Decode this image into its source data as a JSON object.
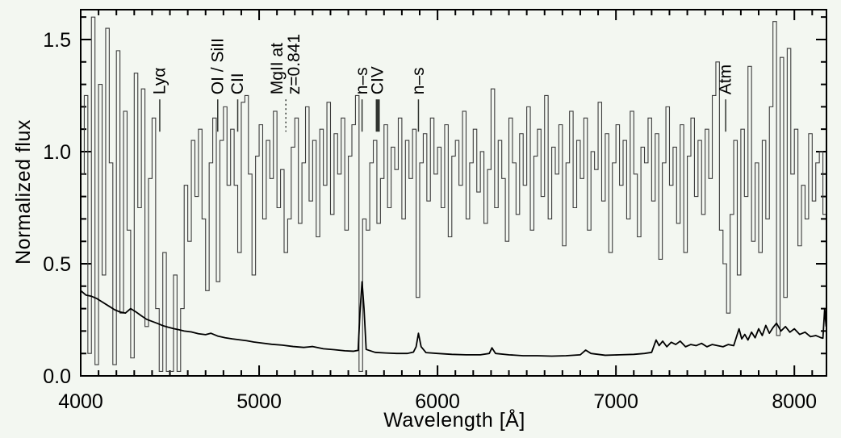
{
  "figure": {
    "background_color": "#f3f7f1",
    "frame_color": "#000000",
    "spectrum_color": "#3c3c3c",
    "error_color": "#000000"
  },
  "chart_data": {
    "type": "line",
    "title": "",
    "xlabel": "Wavelength [Å]",
    "ylabel": "Normalized flux",
    "xlim": [
      4000,
      8180
    ],
    "ylim": [
      0,
      1.633
    ],
    "grid": false,
    "legend": false,
    "x_major_ticks": [
      4000,
      5000,
      6000,
      7000,
      8000
    ],
    "x_major_tick_labels": [
      "4000",
      "5000",
      "6000",
      "7000",
      "8000"
    ],
    "x_minor_step": 100,
    "y_major_ticks": [
      0.0,
      0.5,
      1.0,
      1.5
    ],
    "y_major_tick_labels": [
      "0.0",
      "0.5",
      "1.0",
      "1.5"
    ],
    "y_minor_step": 0.1,
    "annotation_marker_flux": [
      1.089,
      1.233
    ],
    "annotations": [
      {
        "label_lines": [
          "Lyα"
        ],
        "wavelength": 4443,
        "line_style": "solid",
        "line_weight": "thin"
      },
      {
        "label_lines": [
          "OI / SiII"
        ],
        "wavelength": 4768,
        "line_style": "solid",
        "line_weight": "thin"
      },
      {
        "label_lines": [
          "CII"
        ],
        "wavelength": 4880,
        "line_style": "solid",
        "line_weight": "thin"
      },
      {
        "label_lines": [
          "MgII at",
          "z=0.841"
        ],
        "wavelength": 5150,
        "line_style": "dotted",
        "line_weight": "thin"
      },
      {
        "label_lines": [
          "n–s"
        ],
        "wavelength": 5577,
        "line_style": "solid",
        "line_weight": "thin"
      },
      {
        "label_lines": [
          "CIV"
        ],
        "wavelength": 5665,
        "line_style": "solid",
        "line_weight": "thick"
      },
      {
        "label_lines": [
          "n–s"
        ],
        "wavelength": 5893,
        "line_style": "solid",
        "line_weight": "thin"
      },
      {
        "label_lines": [
          "Atm"
        ],
        "wavelength": 7615,
        "line_style": "solid",
        "line_weight": "thin"
      }
    ],
    "series": [
      {
        "name": "object-spectrum",
        "style": "histogram",
        "color": "#3c3c3c",
        "bin_start": 4000,
        "bin_width": 20,
        "values": [
          0.9,
          1.25,
          0.1,
          1.6,
          0.05,
          1.3,
          0.45,
          1.55,
          0.95,
          0.05,
          1.45,
          0.28,
          1.18,
          0.65,
          0.08,
          1.35,
          0.75,
          1.28,
          0.22,
          0.88,
          1.15,
          0.3,
          0.02,
          0.55,
          0.02,
          0.02,
          0.45,
          0.02,
          0.3,
          0.85,
          0.6,
          1.05,
          0.8,
          1.1,
          0.7,
          0.38,
          0.95,
          1.15,
          0.42,
          1.05,
          1.2,
          0.85,
          1.1,
          0.85,
          0.55,
          1.22,
          1.25,
          0.9,
          0.45,
          0.98,
          1.12,
          0.7,
          1.05,
          0.88,
          1.18,
          0.75,
          0.92,
          0.55,
          0.7,
          1.02,
          1.15,
          0.68,
          0.95,
          1.2,
          0.78,
          1.05,
          0.62,
          1.1,
          0.85,
          1.22,
          0.72,
          1.08,
          0.9,
          1.15,
          0.65,
          0.98,
          1.12,
          1.25,
          0.02,
          0.7,
          0.65,
          0.95,
          1.05,
          0.68,
          0.88,
          1.12,
          0.75,
          1.02,
          0.92,
          1.15,
          0.7,
          1.05,
          0.88,
          1.1,
          0.35,
          0.95,
          1.08,
          0.78,
          1.15,
          0.9,
          1.02,
          0.75,
          1.12,
          0.62,
          0.98,
          1.05,
          0.85,
          1.18,
          0.7,
          0.95,
          1.1,
          0.82,
          1.0,
          0.68,
          0.92,
          1.28,
          0.75,
          1.05,
          0.88,
          0.6,
          1.15,
          0.95,
          0.72,
          1.08,
          0.85,
          1.2,
          0.65,
          0.98,
          1.1,
          0.8,
          1.25,
          0.7,
          1.02,
          0.9,
          1.12,
          0.58,
          0.95,
          1.18,
          0.75,
          1.05,
          0.88,
          1.15,
          0.65,
          1.0,
          0.92,
          1.22,
          0.78,
          1.08,
          0.55,
          0.95,
          1.12,
          0.85,
          1.05,
          0.7,
          1.18,
          0.9,
          0.62,
          1.02,
          0.95,
          1.15,
          0.78,
          1.08,
          0.52,
          0.95,
          1.2,
          0.85,
          1.02,
          0.68,
          1.12,
          0.55,
          0.98,
          1.15,
          0.8,
          1.05,
          0.72,
          1.1,
          0.88,
          1.25,
          1.4,
          0.65,
          0.5,
          0.28,
          0.72,
          1.05,
          0.45,
          1.1,
          0.8,
          1.38,
          0.6,
          0.95,
          0.55,
          1.05,
          0.7,
          1.2,
          1.58,
          0.18,
          1.42,
          0.35,
          1.46,
          0.9,
          1.1,
          0.58,
          0.85,
          0.7,
          1.08,
          0.78,
          0.95,
          1.0,
          0.72,
          1.33
        ]
      },
      {
        "name": "error-spectrum",
        "style": "line",
        "color": "#000000",
        "points": [
          [
            4000,
            0.38
          ],
          [
            4030,
            0.36
          ],
          [
            4060,
            0.355
          ],
          [
            4090,
            0.345
          ],
          [
            4120,
            0.33
          ],
          [
            4160,
            0.31
          ],
          [
            4190,
            0.295
          ],
          [
            4220,
            0.285
          ],
          [
            4250,
            0.28
          ],
          [
            4280,
            0.3
          ],
          [
            4310,
            0.285
          ],
          [
            4340,
            0.268
          ],
          [
            4370,
            0.252
          ],
          [
            4400,
            0.243
          ],
          [
            4430,
            0.234
          ],
          [
            4460,
            0.224
          ],
          [
            4490,
            0.217
          ],
          [
            4520,
            0.211
          ],
          [
            4550,
            0.206
          ],
          [
            4580,
            0.2
          ],
          [
            4620,
            0.196
          ],
          [
            4660,
            0.188
          ],
          [
            4700,
            0.184
          ],
          [
            4730,
            0.19
          ],
          [
            4770,
            0.177
          ],
          [
            4810,
            0.17
          ],
          [
            4850,
            0.165
          ],
          [
            4890,
            0.161
          ],
          [
            4930,
            0.157
          ],
          [
            4970,
            0.151
          ],
          [
            5010,
            0.147
          ],
          [
            5070,
            0.141
          ],
          [
            5130,
            0.137
          ],
          [
            5190,
            0.131
          ],
          [
            5250,
            0.127
          ],
          [
            5300,
            0.131
          ],
          [
            5360,
            0.121
          ],
          [
            5420,
            0.117
          ],
          [
            5480,
            0.112
          ],
          [
            5530,
            0.11
          ],
          [
            5555,
            0.114
          ],
          [
            5565,
            0.28
          ],
          [
            5577,
            0.42
          ],
          [
            5588,
            0.3
          ],
          [
            5600,
            0.118
          ],
          [
            5650,
            0.105
          ],
          [
            5710,
            0.102
          ],
          [
            5770,
            0.1
          ],
          [
            5830,
            0.1
          ],
          [
            5865,
            0.106
          ],
          [
            5880,
            0.13
          ],
          [
            5893,
            0.19
          ],
          [
            5908,
            0.13
          ],
          [
            5935,
            0.104
          ],
          [
            6000,
            0.1
          ],
          [
            6080,
            0.096
          ],
          [
            6160,
            0.094
          ],
          [
            6240,
            0.094
          ],
          [
            6290,
            0.1
          ],
          [
            6305,
            0.125
          ],
          [
            6325,
            0.1
          ],
          [
            6400,
            0.094
          ],
          [
            6480,
            0.09
          ],
          [
            6560,
            0.09
          ],
          [
            6640,
            0.088
          ],
          [
            6720,
            0.09
          ],
          [
            6800,
            0.094
          ],
          [
            6830,
            0.115
          ],
          [
            6860,
            0.1
          ],
          [
            6940,
            0.092
          ],
          [
            7020,
            0.094
          ],
          [
            7100,
            0.096
          ],
          [
            7160,
            0.1
          ],
          [
            7200,
            0.105
          ],
          [
            7225,
            0.16
          ],
          [
            7242,
            0.135
          ],
          [
            7262,
            0.155
          ],
          [
            7285,
            0.13
          ],
          [
            7310,
            0.15
          ],
          [
            7335,
            0.14
          ],
          [
            7360,
            0.155
          ],
          [
            7390,
            0.13
          ],
          [
            7420,
            0.14
          ],
          [
            7450,
            0.135
          ],
          [
            7480,
            0.145
          ],
          [
            7510,
            0.13
          ],
          [
            7540,
            0.14
          ],
          [
            7570,
            0.135
          ],
          [
            7600,
            0.13
          ],
          [
            7630,
            0.14
          ],
          [
            7660,
            0.135
          ],
          [
            7690,
            0.21
          ],
          [
            7705,
            0.165
          ],
          [
            7722,
            0.185
          ],
          [
            7740,
            0.16
          ],
          [
            7760,
            0.195
          ],
          [
            7780,
            0.17
          ],
          [
            7800,
            0.21
          ],
          [
            7820,
            0.18
          ],
          [
            7840,
            0.225
          ],
          [
            7860,
            0.19
          ],
          [
            7880,
            0.215
          ],
          [
            7900,
            0.235
          ],
          [
            7925,
            0.2
          ],
          [
            7950,
            0.22
          ],
          [
            7975,
            0.195
          ],
          [
            8000,
            0.21
          ],
          [
            8030,
            0.185
          ],
          [
            8060,
            0.195
          ],
          [
            8090,
            0.175
          ],
          [
            8120,
            0.18
          ],
          [
            8150,
            0.17
          ],
          [
            8160,
            0.168
          ],
          [
            8170,
            0.3
          ],
          [
            8178,
            0.22
          ]
        ]
      }
    ]
  }
}
